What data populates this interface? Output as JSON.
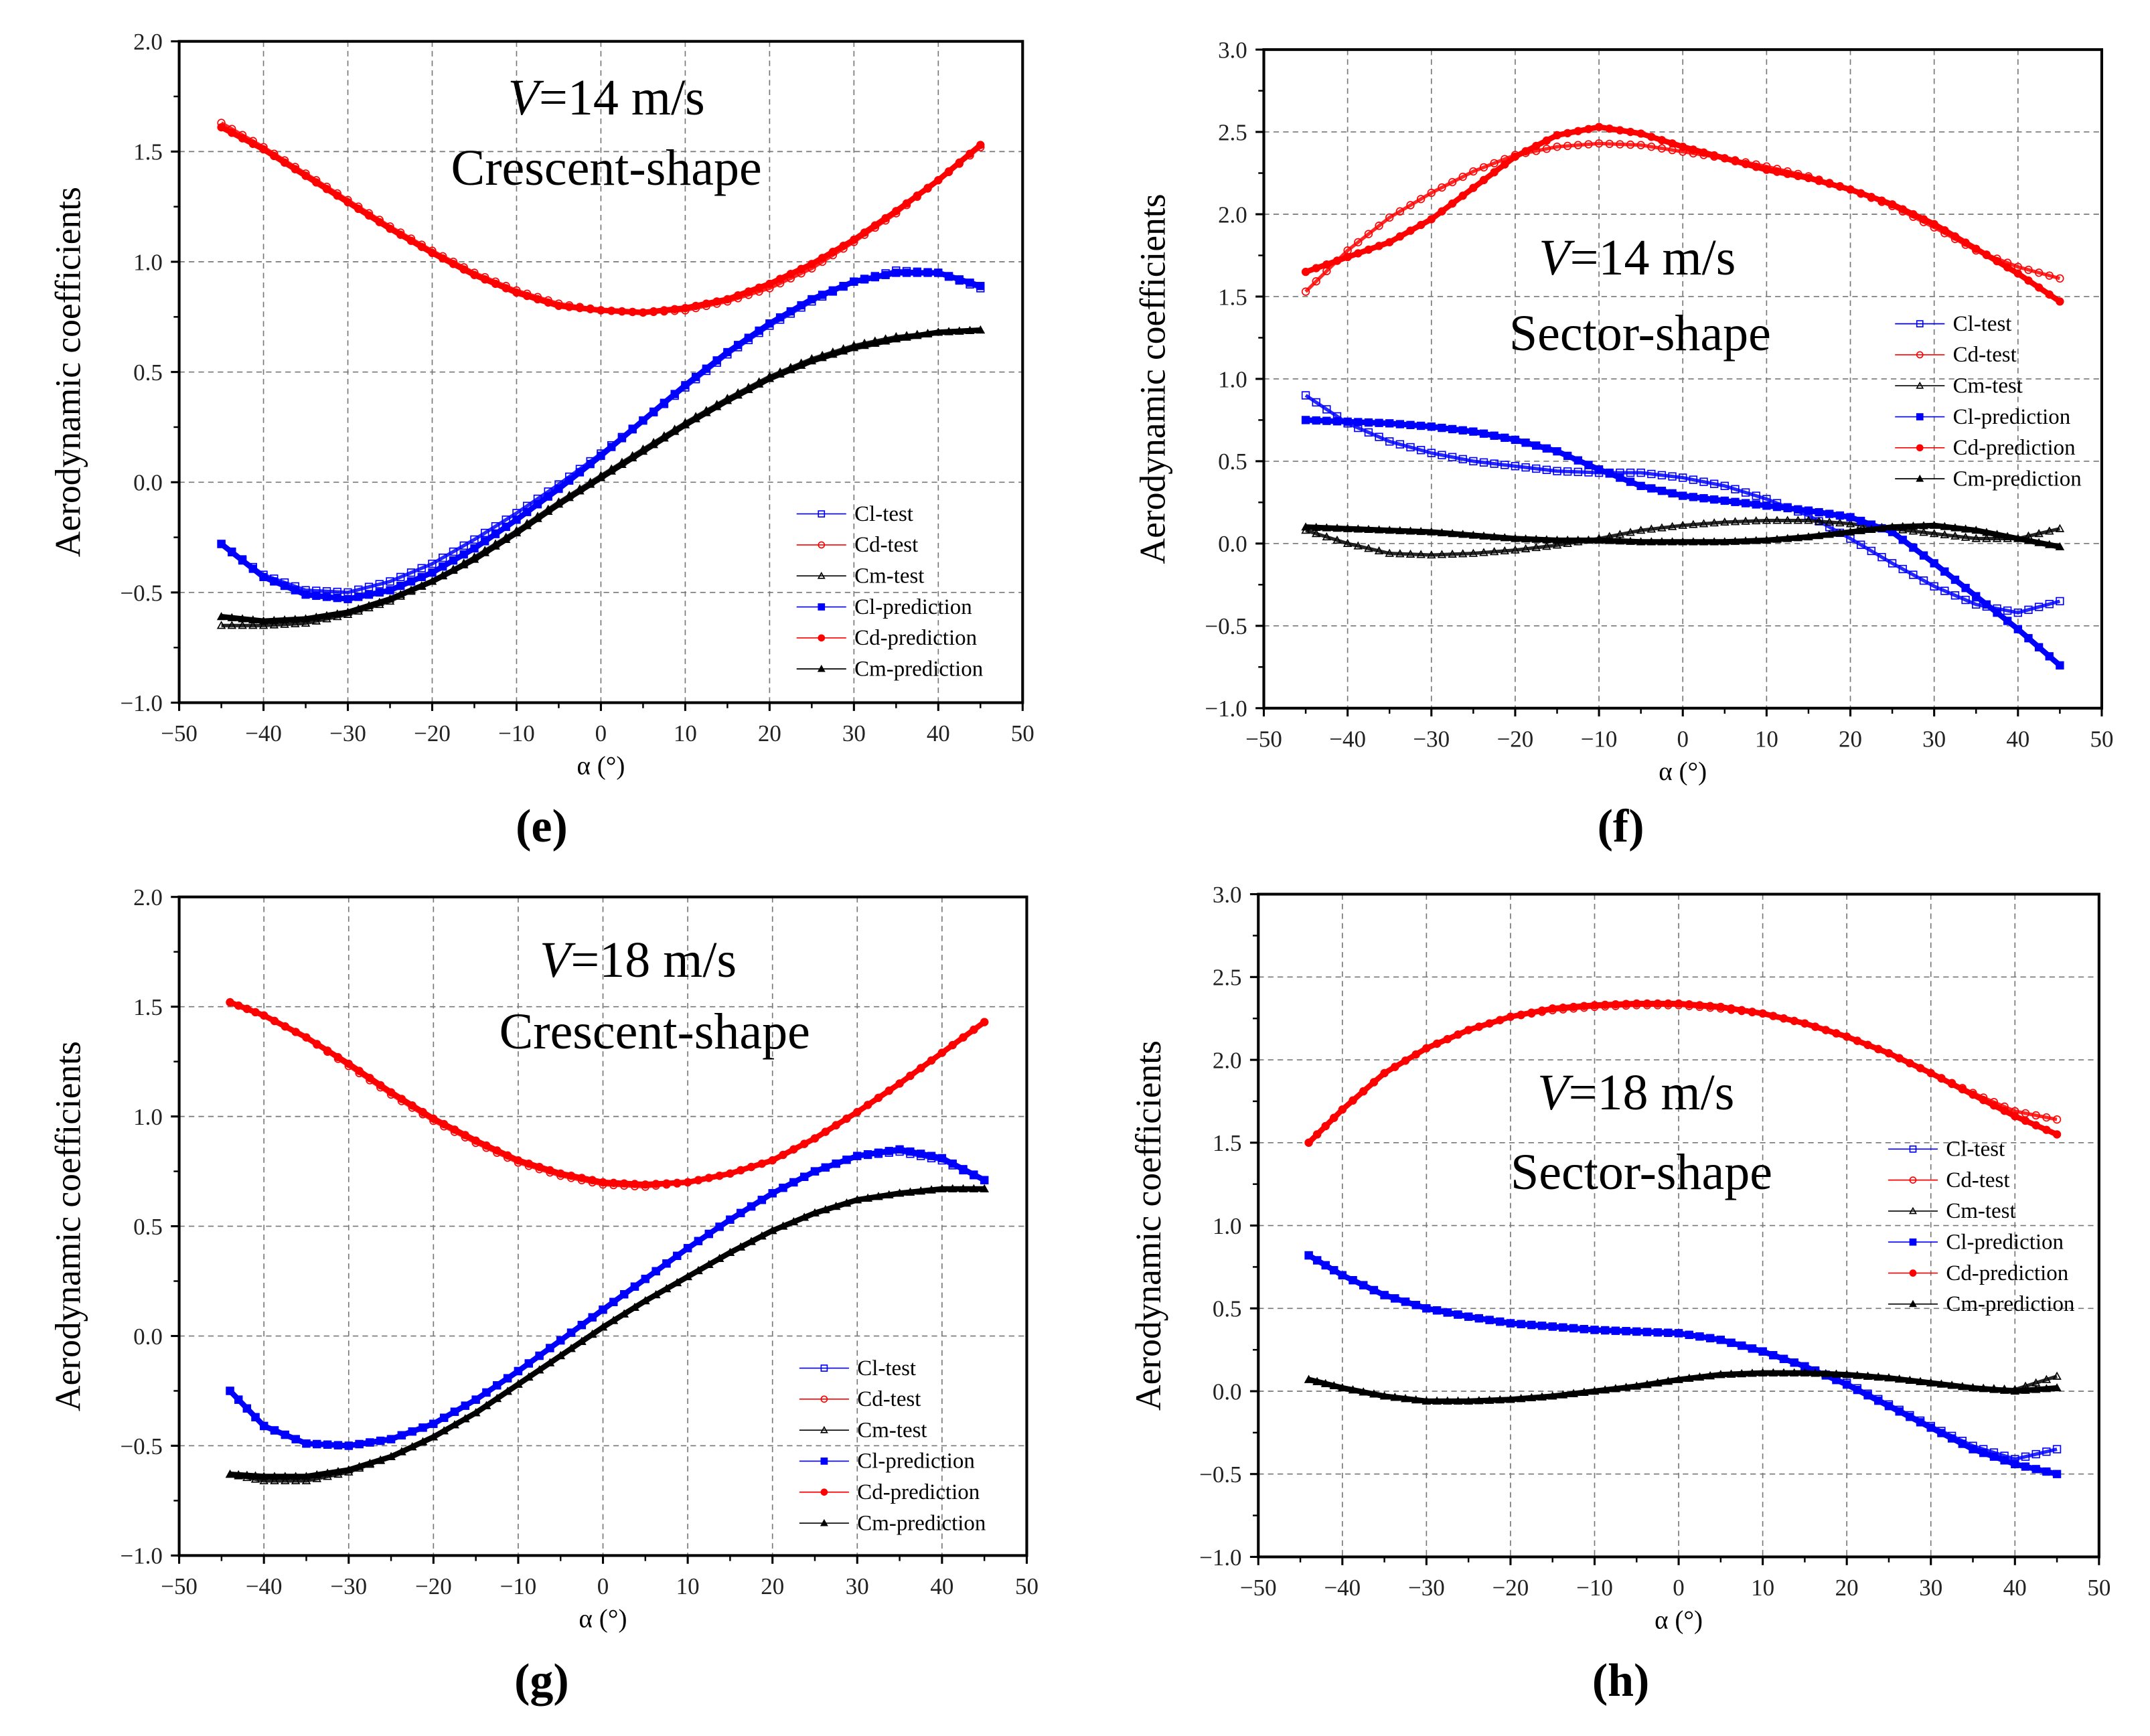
{
  "chart_data": [
    {
      "panel": "(e)",
      "panel_letter": "e",
      "type": "line",
      "title_lines": [
        "V=14 m/s",
        "Crescent-shape"
      ],
      "xlabel": "α (°)",
      "ylabel": "Aerodynamic coefficients",
      "xlim": [
        -50,
        50
      ],
      "ylim": [
        -1.0,
        2.0
      ],
      "xticks": [
        "-50",
        "-40",
        "-30",
        "-20",
        "-10",
        "0",
        "10",
        "20",
        "30",
        "40",
        "50"
      ],
      "yticks": [
        "-1.0",
        "-0.5",
        "0.0",
        "0.5",
        "1.0",
        "1.5",
        "2.0"
      ],
      "grid": true,
      "legend_position": "bottom-right",
      "x": [
        -45,
        -40,
        -35,
        -30,
        -25,
        -20,
        -15,
        -10,
        -5,
        0,
        5,
        10,
        15,
        20,
        25,
        30,
        35,
        40,
        45
      ],
      "series": [
        {
          "name": "Cl-test",
          "color": "#0000ff",
          "marker": "square-open",
          "values": [
            -0.28,
            -0.42,
            -0.49,
            -0.5,
            -0.45,
            -0.37,
            -0.26,
            -0.14,
            -0.01,
            0.13,
            0.28,
            0.43,
            0.58,
            0.71,
            0.82,
            0.91,
            0.96,
            0.95,
            0.88
          ]
        },
        {
          "name": "Cd-test",
          "color": "#ff0000",
          "marker": "circle-open",
          "values": [
            1.63,
            1.52,
            1.4,
            1.28,
            1.16,
            1.05,
            0.95,
            0.87,
            0.81,
            0.78,
            0.77,
            0.78,
            0.82,
            0.88,
            0.97,
            1.09,
            1.22,
            1.37,
            1.52
          ]
        },
        {
          "name": "Cm-test",
          "color": "#000000",
          "marker": "triangle-open",
          "values": [
            -0.65,
            -0.65,
            -0.64,
            -0.6,
            -0.54,
            -0.45,
            -0.34,
            -0.22,
            -0.09,
            0.03,
            0.15,
            0.27,
            0.38,
            0.48,
            0.56,
            0.62,
            0.66,
            0.68,
            0.69
          ]
        },
        {
          "name": "Cl-prediction",
          "color": "#0000ff",
          "marker": "square",
          "values": [
            -0.28,
            -0.43,
            -0.51,
            -0.53,
            -0.49,
            -0.41,
            -0.3,
            -0.17,
            -0.03,
            0.12,
            0.28,
            0.44,
            0.59,
            0.72,
            0.83,
            0.91,
            0.95,
            0.95,
            0.89
          ]
        },
        {
          "name": "Cd-prediction",
          "color": "#ff0000",
          "marker": "circle",
          "values": [
            1.61,
            1.51,
            1.39,
            1.27,
            1.15,
            1.04,
            0.94,
            0.86,
            0.8,
            0.78,
            0.77,
            0.79,
            0.83,
            0.9,
            0.99,
            1.1,
            1.23,
            1.37,
            1.53
          ]
        },
        {
          "name": "Cm-prediction",
          "color": "#000000",
          "marker": "triangle",
          "values": [
            -0.61,
            -0.63,
            -0.62,
            -0.59,
            -0.53,
            -0.45,
            -0.35,
            -0.23,
            -0.1,
            0.02,
            0.14,
            0.26,
            0.37,
            0.47,
            0.55,
            0.61,
            0.65,
            0.68,
            0.69
          ]
        }
      ]
    },
    {
      "panel": "(f)",
      "panel_letter": "f",
      "type": "line",
      "title_lines": [
        "V=14 m/s",
        "Sector-shape"
      ],
      "xlabel": "α (°)",
      "ylabel": "Aerodynamic coefficients",
      "xlim": [
        -50,
        50
      ],
      "ylim": [
        -1.0,
        3.0
      ],
      "xticks": [
        "-50",
        "-40",
        "-30",
        "-20",
        "-10",
        "0",
        "10",
        "20",
        "30",
        "40",
        "50"
      ],
      "yticks": [
        "-1.0",
        "-0.5",
        "0.0",
        "0.5",
        "1.0",
        "1.5",
        "2.0",
        "2.5",
        "3.0"
      ],
      "grid": true,
      "legend_position": "right",
      "x": [
        -45,
        -40,
        -35,
        -30,
        -25,
        -20,
        -15,
        -10,
        -5,
        0,
        5,
        10,
        15,
        20,
        25,
        30,
        35,
        40,
        45
      ],
      "series": [
        {
          "name": "Cl-test",
          "color": "#0000ff",
          "marker": "square-open",
          "values": [
            0.9,
            0.73,
            0.62,
            0.55,
            0.5,
            0.47,
            0.44,
            0.43,
            0.43,
            0.4,
            0.35,
            0.27,
            0.17,
            0.03,
            -0.12,
            -0.26,
            -0.37,
            -0.42,
            -0.35
          ]
        },
        {
          "name": "Cd-test",
          "color": "#ff0000",
          "marker": "circle-open",
          "values": [
            1.53,
            1.78,
            1.98,
            2.13,
            2.26,
            2.36,
            2.41,
            2.43,
            2.42,
            2.38,
            2.34,
            2.29,
            2.23,
            2.15,
            2.05,
            1.92,
            1.78,
            1.68,
            1.61
          ]
        },
        {
          "name": "Cm-test",
          "color": "#000000",
          "marker": "triangle-open",
          "values": [
            0.08,
            0.0,
            -0.06,
            -0.07,
            -0.06,
            -0.04,
            -0.01,
            0.03,
            0.08,
            0.11,
            0.13,
            0.14,
            0.14,
            0.12,
            0.09,
            0.06,
            0.03,
            0.03,
            0.09
          ]
        },
        {
          "name": "Cl-prediction",
          "color": "#0000ff",
          "marker": "square",
          "values": [
            0.75,
            0.74,
            0.73,
            0.71,
            0.68,
            0.63,
            0.56,
            0.45,
            0.35,
            0.29,
            0.26,
            0.23,
            0.2,
            0.16,
            0.07,
            -0.12,
            -0.32,
            -0.52,
            -0.74
          ]
        },
        {
          "name": "Cd-prediction",
          "color": "#ff0000",
          "marker": "circle",
          "values": [
            1.65,
            1.74,
            1.83,
            1.97,
            2.16,
            2.35,
            2.48,
            2.53,
            2.49,
            2.41,
            2.34,
            2.27,
            2.22,
            2.15,
            2.06,
            1.94,
            1.79,
            1.64,
            1.47
          ]
        },
        {
          "name": "Cm-prediction",
          "color": "#000000",
          "marker": "triangle",
          "values": [
            0.1,
            0.09,
            0.08,
            0.07,
            0.05,
            0.03,
            0.02,
            0.02,
            0.01,
            0.01,
            0.01,
            0.02,
            0.04,
            0.07,
            0.1,
            0.11,
            0.08,
            0.03,
            -0.02
          ]
        }
      ]
    },
    {
      "panel": "(g)",
      "panel_letter": "g",
      "type": "line",
      "title_lines": [
        "V=18 m/s",
        "Crescent-shape"
      ],
      "xlabel": "α (°)",
      "ylabel": "Aerodynamic coefficients",
      "xlim": [
        -50,
        50
      ],
      "ylim": [
        -1.0,
        2.0
      ],
      "xticks": [
        "-50",
        "-40",
        "-30",
        "-20",
        "-10",
        "0",
        "10",
        "20",
        "30",
        "40",
        "50"
      ],
      "yticks": [
        "-1.0",
        "-0.5",
        "0.0",
        "0.5",
        "1.0",
        "1.5",
        "2.0"
      ],
      "grid": true,
      "legend_position": "bottom-right",
      "x": [
        -44,
        -40,
        -35,
        -30,
        -25,
        -20,
        -15,
        -10,
        -5,
        0,
        5,
        10,
        15,
        20,
        25,
        30,
        35,
        40,
        45
      ],
      "series": [
        {
          "name": "Cl-test",
          "color": "#0000ff",
          "marker": "square-open",
          "values": [
            -0.25,
            -0.41,
            -0.49,
            -0.5,
            -0.47,
            -0.4,
            -0.29,
            -0.16,
            -0.02,
            0.12,
            0.26,
            0.4,
            0.53,
            0.65,
            0.75,
            0.82,
            0.84,
            0.8,
            0.71
          ]
        },
        {
          "name": "Cd-test",
          "color": "#ff0000",
          "marker": "circle-open",
          "values": [
            1.52,
            1.46,
            1.36,
            1.23,
            1.1,
            0.98,
            0.88,
            0.79,
            0.73,
            0.69,
            0.68,
            0.7,
            0.74,
            0.8,
            0.9,
            1.02,
            1.15,
            1.29,
            1.43
          ]
        },
        {
          "name": "Cm-test",
          "color": "#000000",
          "marker": "triangle-open",
          "values": [
            -0.63,
            -0.66,
            -0.66,
            -0.62,
            -0.55,
            -0.46,
            -0.35,
            -0.22,
            -0.09,
            0.04,
            0.16,
            0.27,
            0.38,
            0.48,
            0.56,
            0.62,
            0.65,
            0.67,
            0.67
          ]
        },
        {
          "name": "Cl-prediction",
          "color": "#0000ff",
          "marker": "square",
          "values": [
            -0.25,
            -0.41,
            -0.49,
            -0.5,
            -0.47,
            -0.4,
            -0.29,
            -0.16,
            -0.02,
            0.12,
            0.26,
            0.4,
            0.53,
            0.65,
            0.75,
            0.82,
            0.85,
            0.81,
            0.71
          ]
        },
        {
          "name": "Cd-prediction",
          "color": "#ff0000",
          "marker": "circle",
          "values": [
            1.52,
            1.46,
            1.36,
            1.24,
            1.11,
            0.99,
            0.89,
            0.8,
            0.74,
            0.7,
            0.69,
            0.7,
            0.74,
            0.8,
            0.9,
            1.02,
            1.15,
            1.29,
            1.43
          ]
        },
        {
          "name": "Cm-prediction",
          "color": "#000000",
          "marker": "triangle",
          "values": [
            -0.63,
            -0.64,
            -0.64,
            -0.61,
            -0.55,
            -0.46,
            -0.35,
            -0.22,
            -0.09,
            0.04,
            0.16,
            0.27,
            0.38,
            0.48,
            0.56,
            0.62,
            0.65,
            0.67,
            0.67
          ]
        }
      ]
    },
    {
      "panel": "(h)",
      "panel_letter": "h",
      "type": "line",
      "title_lines": [
        "V=18 m/s",
        "Sector-shape"
      ],
      "xlabel": "α (°)",
      "ylabel": "Aerodynamic coefficients",
      "xlim": [
        -50,
        50
      ],
      "ylim": [
        -1.0,
        3.0
      ],
      "xticks": [
        "-50",
        "-40",
        "-30",
        "-20",
        "-10",
        "0",
        "10",
        "20",
        "30",
        "40",
        "50"
      ],
      "yticks": [
        "-1.0",
        "-0.5",
        "0.0",
        "0.5",
        "1.0",
        "1.5",
        "2.0",
        "2.5",
        "3.0"
      ],
      "grid": true,
      "legend_position": "right",
      "x": [
        -44,
        -40,
        -35,
        -30,
        -25,
        -20,
        -15,
        -10,
        -5,
        0,
        5,
        10,
        15,
        20,
        25,
        30,
        35,
        40,
        45
      ],
      "series": [
        {
          "name": "Cl-test",
          "color": "#0000ff",
          "marker": "square-open",
          "values": [
            0.82,
            0.7,
            0.58,
            0.5,
            0.45,
            0.41,
            0.39,
            0.37,
            0.36,
            0.35,
            0.31,
            0.24,
            0.15,
            0.05,
            -0.08,
            -0.21,
            -0.33,
            -0.41,
            -0.35
          ]
        },
        {
          "name": "Cd-test",
          "color": "#ff0000",
          "marker": "circle-open",
          "values": [
            1.5,
            1.7,
            1.92,
            2.07,
            2.18,
            2.26,
            2.3,
            2.32,
            2.33,
            2.33,
            2.31,
            2.28,
            2.22,
            2.14,
            2.04,
            1.92,
            1.8,
            1.69,
            1.64
          ]
        },
        {
          "name": "Cm-test",
          "color": "#000000",
          "marker": "triangle-open",
          "values": [
            0.07,
            0.02,
            -0.03,
            -0.06,
            -0.06,
            -0.05,
            -0.03,
            0.0,
            0.03,
            0.07,
            0.1,
            0.11,
            0.11,
            0.1,
            0.08,
            0.05,
            0.02,
            0.01,
            0.09
          ]
        },
        {
          "name": "Cl-prediction",
          "color": "#0000ff",
          "marker": "square",
          "values": [
            0.82,
            0.7,
            0.58,
            0.5,
            0.45,
            0.41,
            0.39,
            0.37,
            0.36,
            0.35,
            0.31,
            0.24,
            0.15,
            0.04,
            -0.09,
            -0.22,
            -0.35,
            -0.44,
            -0.5
          ]
        },
        {
          "name": "Cd-prediction",
          "color": "#ff0000",
          "marker": "circle",
          "values": [
            1.5,
            1.7,
            1.92,
            2.07,
            2.18,
            2.26,
            2.31,
            2.33,
            2.34,
            2.34,
            2.32,
            2.28,
            2.22,
            2.14,
            2.04,
            1.92,
            1.79,
            1.66,
            1.55
          ]
        },
        {
          "name": "Cm-prediction",
          "color": "#000000",
          "marker": "triangle",
          "values": [
            0.07,
            0.02,
            -0.03,
            -0.06,
            -0.06,
            -0.05,
            -0.03,
            0.0,
            0.03,
            0.07,
            0.1,
            0.11,
            0.11,
            0.1,
            0.08,
            0.05,
            0.02,
            0.0,
            0.02
          ]
        }
      ]
    }
  ]
}
